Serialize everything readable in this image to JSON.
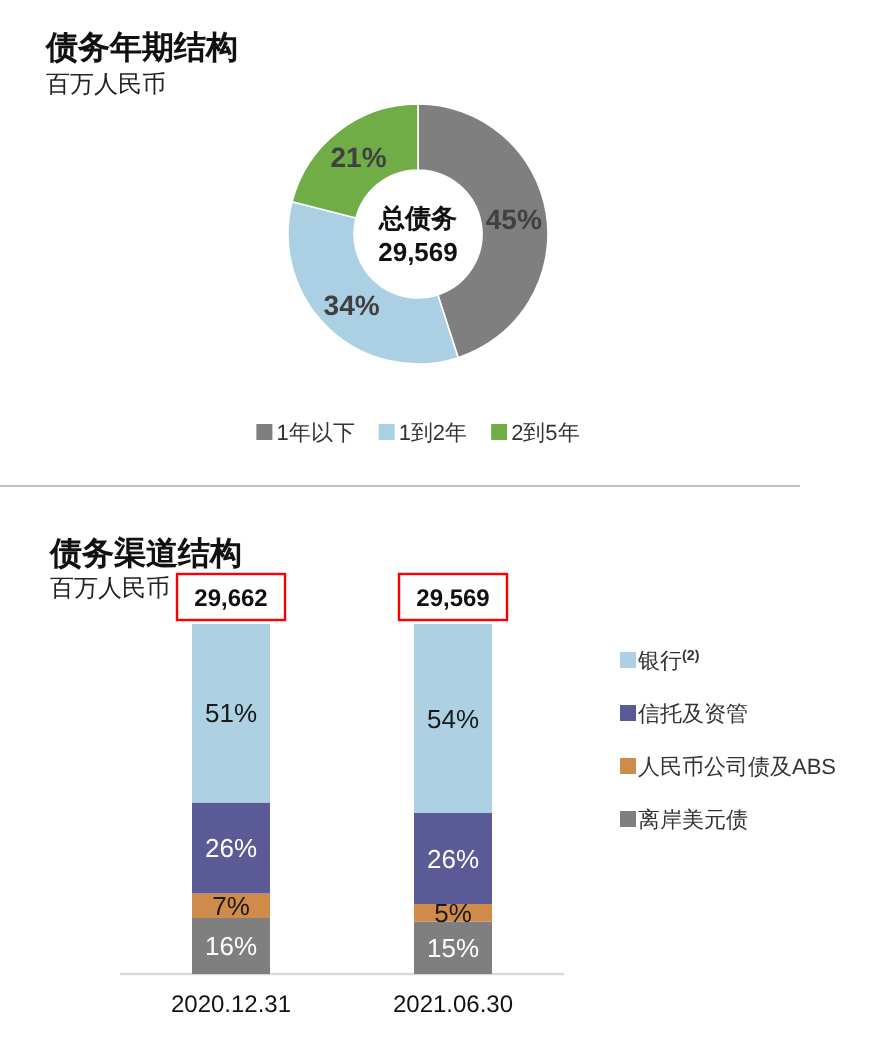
{
  "chart_data": [
    {
      "type": "donut",
      "title": "债务年期结构",
      "subtitle": "百万人民币",
      "categories": [
        "1年以下",
        "1到2年",
        "2到5年"
      ],
      "values": [
        45,
        34,
        21
      ],
      "colors": [
        "#7f7f7f",
        "#abd0e3",
        "#70ad47"
      ],
      "value_labels": [
        "45%",
        "34%",
        "21%"
      ],
      "annotations": [
        "总债务",
        "29,569"
      ],
      "legend": "bottom"
    },
    {
      "type": "bar",
      "stacked": true,
      "title": "债务渠道结构",
      "subtitle": "百万人民币",
      "categories": [
        "2020.12.31",
        "2021.06.30"
      ],
      "series": [
        {
          "name": "离岸美元债",
          "color": "#7f7f7f",
          "values": [
            16,
            15
          ],
          "value_labels": [
            "16%",
            "15%"
          ]
        },
        {
          "name": "人民币公司债及ABS",
          "color": "#d08b4b",
          "values": [
            7,
            5
          ],
          "value_labels": [
            "7%",
            "5%"
          ]
        },
        {
          "name": "信托及资管",
          "color": "#5a5a96",
          "values": [
            26,
            26
          ],
          "value_labels": [
            "26%",
            "26%"
          ]
        },
        {
          "name": "银行$^{(2)}$",
          "color": "#add0e3",
          "values": [
            51,
            54
          ],
          "value_labels": [
            "51%",
            "54%"
          ]
        }
      ],
      "annotations": [
        "29,662",
        "29,569"
      ],
      "legend": "right"
    }
  ]
}
